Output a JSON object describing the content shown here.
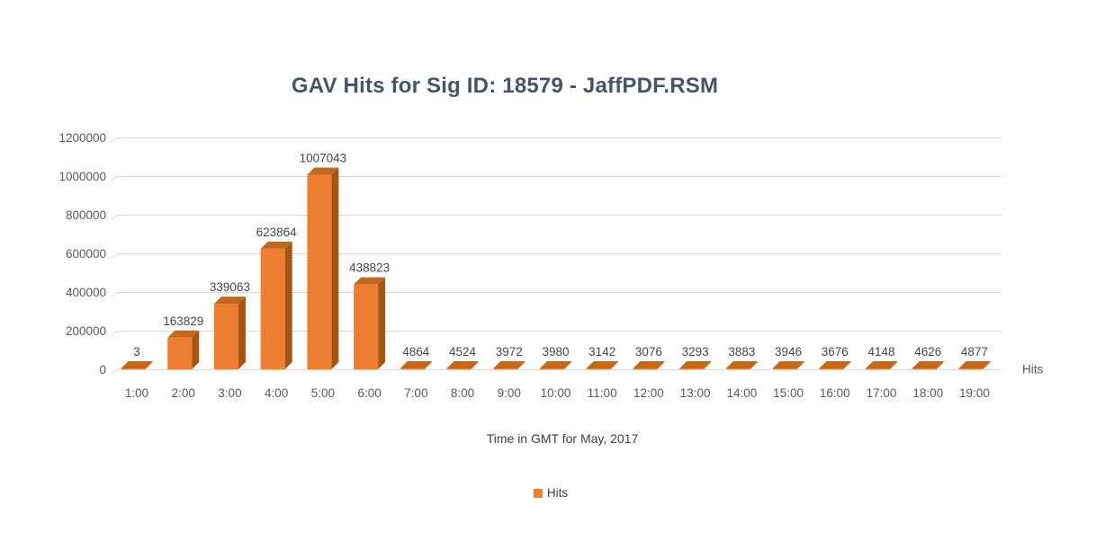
{
  "page": {
    "background": "#FFFFFF"
  },
  "chart_data": {
    "type": "bar",
    "title": "GAV Hits for Sig ID: 18579 - JaffPDF.RSM",
    "categories": [
      "1:00",
      "2:00",
      "3:00",
      "4:00",
      "5:00",
      "6:00",
      "7:00",
      "8:00",
      "9:00",
      "10:00",
      "11:00",
      "12:00",
      "13:00",
      "14:00",
      "15:00",
      "16:00",
      "17:00",
      "18:00",
      "19:00"
    ],
    "series": [
      {
        "name": "Hits",
        "values": [
          3,
          163829,
          339063,
          623864,
          1007043,
          438823,
          4864,
          4524,
          3972,
          3980,
          3142,
          3076,
          3293,
          3883,
          3946,
          3676,
          4148,
          4626,
          4877
        ]
      }
    ],
    "data_labels": true,
    "xlabel": "Time in GMT for May, 2017",
    "ylabel": "",
    "ylim": [
      0,
      1200000
    ],
    "yticks": [
      0,
      200000,
      400000,
      600000,
      800000,
      1000000,
      1200000
    ],
    "axis_end_label": "Hits",
    "grid": true,
    "legend": {
      "position": "bottom",
      "entries": [
        {
          "label": "Hits",
          "color": "#ED7D31"
        }
      ]
    },
    "style": {
      "bar_front": "#ED7D31",
      "bar_side": "#A5550F",
      "bar_top": "#C4681C",
      "gridline": "#D9D9D9",
      "axis_text": "#595959",
      "title_color": "#44546A",
      "effect": "3d"
    }
  }
}
